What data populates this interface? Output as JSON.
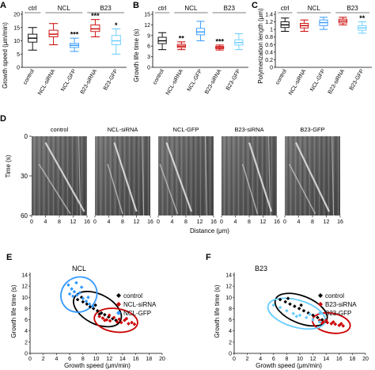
{
  "panels": {
    "A": {
      "letter": "A",
      "ylabel": "Growth speed (μm/min)",
      "yticks": [
        "0",
        "5",
        "10",
        "15",
        "20"
      ],
      "ylim": [
        0,
        20
      ],
      "groups": [
        "ctrl",
        "NCL",
        "B23"
      ],
      "categories": [
        "control",
        "NCL-siRNA",
        "NCL-GFP",
        "B23-siRNA",
        "B23-GFP"
      ],
      "colors": [
        "#000000",
        "#cc0000",
        "#3399ff",
        "#cc0000",
        "#66ccff"
      ],
      "boxes": [
        {
          "min": 6.5,
          "q1": 9.5,
          "median": 11.0,
          "q3": 12.5,
          "max": 15.0,
          "stars": ""
        },
        {
          "min": 8.5,
          "q1": 11.5,
          "median": 12.5,
          "q3": 14.0,
          "max": 16.5,
          "stars": ""
        },
        {
          "min": 6.0,
          "q1": 7.5,
          "median": 8.3,
          "q3": 9.0,
          "max": 11.0,
          "stars": "***"
        },
        {
          "min": 11.5,
          "q1": 13.5,
          "median": 14.5,
          "q3": 16.0,
          "max": 18.0,
          "stars": "***"
        },
        {
          "min": 5.0,
          "q1": 8.5,
          "median": 10.0,
          "q3": 12.0,
          "max": 14.5,
          "stars": "*"
        }
      ]
    },
    "B": {
      "letter": "B",
      "ylabel": "Growth life time (s)",
      "yticks": [
        "0",
        "3",
        "6",
        "9",
        "12",
        "15"
      ],
      "ylim": [
        0,
        15
      ],
      "groups": [
        "ctrl",
        "NCL",
        "B23"
      ],
      "categories": [
        "control",
        "NCL-siRNA",
        "NCL-GFP",
        "B23-siRNA",
        "B23-GFP"
      ],
      "colors": [
        "#000000",
        "#cc0000",
        "#3399ff",
        "#cc0000",
        "#66ccff"
      ],
      "boxes": [
        {
          "min": 5.0,
          "q1": 6.7,
          "median": 7.5,
          "q3": 8.5,
          "max": 9.8,
          "stars": ""
        },
        {
          "min": 5.0,
          "q1": 5.6,
          "median": 6.0,
          "q3": 6.5,
          "max": 7.2,
          "stars": "**"
        },
        {
          "min": 7.5,
          "q1": 9.2,
          "median": 10.0,
          "q3": 11.0,
          "max": 13.0,
          "stars": ""
        },
        {
          "min": 4.9,
          "q1": 5.3,
          "median": 5.6,
          "q3": 5.9,
          "max": 6.3,
          "stars": "***"
        },
        {
          "min": 5.0,
          "q1": 6.3,
          "median": 7.0,
          "q3": 7.8,
          "max": 9.5,
          "stars": ""
        }
      ]
    },
    "C": {
      "letter": "C",
      "ylabel": "Polymerization length (μm)",
      "yticks": [
        "0",
        "0.2",
        "0.4",
        "0.6",
        "0.8",
        "1",
        "1.2",
        "1.4"
      ],
      "ylim": [
        0,
        1.4
      ],
      "groups": [
        "ctrl",
        "NCL",
        "B23"
      ],
      "categories": [
        "control",
        "NCL-siRNA",
        "NCL-GFP",
        "B23-siRNA",
        "B23-GFP"
      ],
      "colors": [
        "#000000",
        "#cc0000",
        "#3399ff",
        "#cc0000",
        "#66ccff"
      ],
      "boxes": [
        {
          "min": 0.95,
          "q1": 1.05,
          "median": 1.12,
          "q3": 1.2,
          "max": 1.3,
          "stars": ""
        },
        {
          "min": 0.95,
          "q1": 1.04,
          "median": 1.1,
          "q3": 1.16,
          "max": 1.25,
          "stars": ""
        },
        {
          "min": 1.0,
          "q1": 1.1,
          "median": 1.18,
          "q3": 1.25,
          "max": 1.32,
          "stars": ""
        },
        {
          "min": 1.12,
          "q1": 1.17,
          "median": 1.22,
          "q3": 1.27,
          "max": 1.32,
          "stars": ""
        },
        {
          "min": 0.9,
          "q1": 0.98,
          "median": 1.04,
          "q3": 1.1,
          "max": 1.2,
          "stars": "**"
        }
      ]
    },
    "D": {
      "letter": "D",
      "ylabel": "Time (s)",
      "xlabel": "Distance (μm)",
      "yticks": [
        "0",
        "30",
        "60"
      ],
      "xticks": [
        "0",
        "4",
        "8",
        "12",
        "16"
      ],
      "labels": [
        "control",
        "NCL-siRNA",
        "NCL-GFP",
        "B23-siRNA",
        "B23-GFP"
      ]
    },
    "E": {
      "letter": "E",
      "title": "NCL",
      "xlabel": "Growth speed (μm/min)",
      "ylabel": "Growth life time (s)",
      "xticks": [
        "0",
        "2",
        "4",
        "6",
        "8",
        "10",
        "12",
        "14",
        "16",
        "18",
        "20"
      ],
      "yticks": [
        "0",
        "2",
        "4",
        "6",
        "8",
        "10",
        "12",
        "14"
      ],
      "legend": [
        "control",
        "NCL-siRNA",
        "NCL-GFP"
      ]
    },
    "F": {
      "letter": "F",
      "title": "B23",
      "xlabel": "Growth speed (μm/min)",
      "ylabel": "Growth life time (s)",
      "xticks": [
        "0",
        "2",
        "4",
        "6",
        "8",
        "10",
        "12",
        "14",
        "16",
        "18",
        "20"
      ],
      "yticks": [
        "0",
        "2",
        "4",
        "6",
        "8",
        "10",
        "12",
        "14"
      ],
      "legend": [
        "control",
        "B23-siRNA",
        "B23-GFP"
      ]
    }
  },
  "chart_data": [
    {
      "type": "box",
      "panel": "A",
      "ylabel": "Growth speed (μm/min)",
      "ylim": [
        0,
        20
      ],
      "categories": [
        "control",
        "NCL-siRNA",
        "NCL-GFP",
        "B23-siRNA",
        "B23-GFP"
      ],
      "medians": [
        11.0,
        12.5,
        8.3,
        14.5,
        10.0
      ],
      "significance": [
        "",
        "",
        "***",
        "***",
        "*"
      ]
    },
    {
      "type": "box",
      "panel": "B",
      "ylabel": "Growth life time (s)",
      "ylim": [
        0,
        15
      ],
      "categories": [
        "control",
        "NCL-siRNA",
        "NCL-GFP",
        "B23-siRNA",
        "B23-GFP"
      ],
      "medians": [
        7.5,
        6.0,
        10.0,
        5.6,
        7.0
      ],
      "significance": [
        "",
        "**",
        "",
        "***",
        ""
      ]
    },
    {
      "type": "box",
      "panel": "C",
      "ylabel": "Polymerization length (μm)",
      "ylim": [
        0,
        1.4
      ],
      "categories": [
        "control",
        "NCL-siRNA",
        "NCL-GFP",
        "B23-siRNA",
        "B23-GFP"
      ],
      "medians": [
        1.12,
        1.1,
        1.18,
        1.22,
        1.04
      ],
      "significance": [
        "",
        "",
        "",
        "",
        "**"
      ]
    },
    {
      "type": "scatter",
      "panel": "E",
      "title": "NCL",
      "xlabel": "Growth speed (μm/min)",
      "ylabel": "Growth life time (s)",
      "xlim": [
        0,
        20
      ],
      "ylim": [
        0,
        14
      ],
      "series": [
        {
          "name": "control",
          "color": "#000000",
          "x": [
            7.2,
            8.0,
            8.6,
            9.1,
            9.6,
            10.2,
            10.8,
            11.3,
            11.9,
            12.5,
            13.0,
            7.8,
            9.9,
            10.5
          ],
          "y": [
            9.6,
            9.2,
            8.8,
            8.3,
            8.0,
            7.6,
            7.2,
            6.9,
            6.5,
            6.2,
            5.9,
            10.0,
            8.6,
            7.0
          ]
        },
        {
          "name": "NCL-siRNA",
          "color": "#cc0000",
          "x": [
            10.5,
            11.0,
            11.6,
            12.1,
            12.7,
            13.2,
            13.8,
            14.3,
            14.9,
            15.4,
            12.0,
            13.5,
            11.3,
            14.6,
            15.8
          ],
          "y": [
            6.6,
            6.3,
            6.0,
            5.8,
            6.4,
            5.6,
            5.5,
            5.9,
            5.3,
            5.5,
            6.8,
            6.1,
            5.9,
            6.2,
            5.2
          ]
        },
        {
          "name": "NCL-GFP",
          "color": "#3399ff",
          "x": [
            5.8,
            6.3,
            6.7,
            7.1,
            7.5,
            8.0,
            8.5,
            9.0,
            6.5,
            7.8,
            8.8,
            9.5,
            7.0,
            6.0
          ],
          "y": [
            12.2,
            11.5,
            11.0,
            10.4,
            10.8,
            9.8,
            9.3,
            8.8,
            10.2,
            11.8,
            10.0,
            8.4,
            12.6,
            10.6
          ]
        }
      ]
    },
    {
      "type": "scatter",
      "panel": "F",
      "title": "B23",
      "xlabel": "Growth speed (μm/min)",
      "ylabel": "Growth life time (s)",
      "xlim": [
        0,
        20
      ],
      "ylim": [
        0,
        14
      ],
      "series": [
        {
          "name": "control",
          "color": "#000000",
          "x": [
            7.0,
            7.8,
            8.5,
            9.2,
            9.9,
            10.6,
            11.3,
            12.0,
            12.7,
            13.4,
            8.2,
            10.2
          ],
          "y": [
            9.6,
            9.2,
            8.8,
            8.4,
            8.0,
            7.6,
            7.2,
            6.8,
            6.4,
            6.0,
            9.8,
            8.6
          ]
        },
        {
          "name": "B23-siRNA",
          "color": "#cc0000",
          "x": [
            13.0,
            13.6,
            14.2,
            14.8,
            15.4,
            16.0,
            16.6,
            14.0,
            15.1,
            13.4,
            16.3
          ],
          "y": [
            5.9,
            5.6,
            5.5,
            5.3,
            5.2,
            5.0,
            4.9,
            5.9,
            5.6,
            5.4,
            5.3
          ]
        },
        {
          "name": "B23-GFP",
          "color": "#66ccff",
          "x": [
            6.0,
            7.0,
            8.0,
            9.0,
            10.0,
            11.0,
            12.0,
            13.0,
            9.5,
            11.5
          ],
          "y": [
            8.6,
            8.2,
            7.6,
            7.1,
            6.8,
            6.4,
            6.0,
            5.6,
            6.6,
            7.0
          ]
        }
      ]
    }
  ]
}
